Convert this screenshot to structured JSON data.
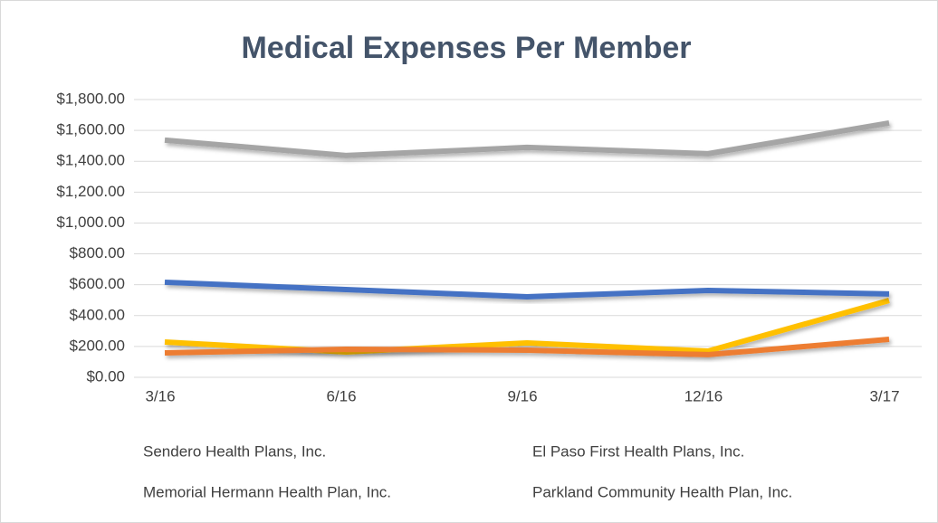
{
  "chart_data": {
    "type": "line",
    "title": "Medical Expenses Per Member",
    "categories": [
      "3/16",
      "6/16",
      "9/16",
      "12/16",
      "3/17"
    ],
    "series": [
      {
        "name": "Sendero Health Plans, Inc.",
        "color": "#ffc000",
        "values": [
          229,
          164,
          223,
          170,
          498
        ]
      },
      {
        "name": "El Paso First Health Plans, Inc.",
        "color": "#4472c4",
        "values": [
          616,
          569,
          522,
          563,
          540
        ]
      },
      {
        "name": "Memorial Hermann Health Plan, Inc.",
        "color": "#ed7d31",
        "values": [
          158,
          182,
          176,
          147,
          246
        ]
      },
      {
        "name": "Parkland Community Health Plan, Inc.",
        "color": "#a5a5a5",
        "values": [
          1537,
          1437,
          1490,
          1449,
          1648
        ]
      }
    ],
    "ylim": [
      0,
      1800
    ],
    "yticks": [
      {
        "value": 0,
        "label": "$0.00"
      },
      {
        "value": 200,
        "label": "$200.00"
      },
      {
        "value": 400,
        "label": "$400.00"
      },
      {
        "value": 600,
        "label": "$600.00"
      },
      {
        "value": 800,
        "label": "$800.00"
      },
      {
        "value": 1000,
        "label": "$1,000.00"
      },
      {
        "value": 1200,
        "label": "$1,200.00"
      },
      {
        "value": 1400,
        "label": "$1,400.00"
      },
      {
        "value": 1600,
        "label": "$1,600.00"
      },
      {
        "value": 1800,
        "label": "$1,800.00"
      }
    ],
    "grid": true,
    "legend": "bottom"
  }
}
